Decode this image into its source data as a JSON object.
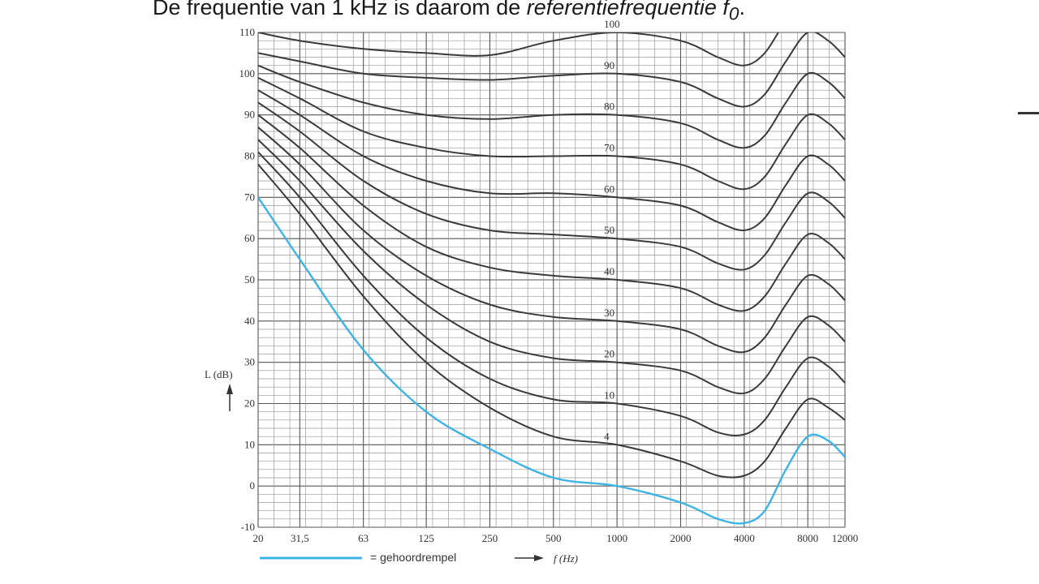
{
  "caption": {
    "prefix": "De frequentie van 1 kHz is daarom de ",
    "italic": "referentiefrequentie f",
    "sub": "0",
    "suffix": "."
  },
  "chart_data": {
    "type": "line",
    "x_scale": "log",
    "x_tick_values": [
      20,
      31.5,
      63,
      125,
      250,
      500,
      1000,
      2000,
      4000,
      8000,
      12000
    ],
    "x_tick_labels": [
      "20",
      "31,5",
      "63",
      "125",
      "250",
      "500",
      "1000",
      "2000",
      "4000",
      "8000",
      "12000"
    ],
    "y_ticks": [
      -10,
      0,
      10,
      20,
      30,
      40,
      50,
      60,
      70,
      80,
      90,
      100,
      110
    ],
    "xlim": [
      20,
      12000
    ],
    "ylim": [
      -10,
      110
    ],
    "grid": true,
    "xlabel": "f (Hz)",
    "ylabel": "L (dB)",
    "colors": {
      "threshold": "#3db4e5",
      "curves": "#3a3a3a",
      "grid": "#555555"
    },
    "series": [
      {
        "name": "gehoordrempel",
        "x": [
          20,
          31.5,
          63,
          125,
          250,
          500,
          1000,
          2000,
          3000,
          4000,
          5000,
          6300,
          8000,
          10000,
          12000
        ],
        "values": [
          70,
          55,
          33,
          18,
          9,
          2,
          0,
          -4,
          -8,
          -9,
          -6,
          4,
          12,
          11,
          7
        ]
      },
      {
        "label": "4",
        "x": [
          20,
          31.5,
          63,
          125,
          250,
          500,
          1000,
          2000,
          3000,
          4000,
          5000,
          6300,
          8000,
          10000,
          12000
        ],
        "values": [
          78,
          66,
          46,
          30,
          19,
          12,
          10,
          6,
          2.5,
          2.5,
          6,
          14,
          21,
          19,
          16
        ]
      },
      {
        "label": "10",
        "x": [
          20,
          31.5,
          63,
          125,
          250,
          500,
          1000,
          2000,
          3000,
          4000,
          5000,
          6300,
          8000,
          10000,
          12000
        ],
        "values": [
          81,
          70,
          51,
          36,
          26,
          21,
          20,
          17,
          13,
          12.5,
          16,
          24,
          31,
          29,
          25
        ]
      },
      {
        "label": "20",
        "x": [
          20,
          31.5,
          63,
          125,
          250,
          500,
          1000,
          2000,
          3000,
          4000,
          5000,
          6300,
          8000,
          10000,
          12000
        ],
        "values": [
          84,
          74,
          57,
          44,
          35,
          31,
          30,
          28,
          24,
          22.5,
          26,
          34,
          41,
          39,
          35
        ]
      },
      {
        "label": "30",
        "x": [
          20,
          31.5,
          63,
          125,
          250,
          500,
          1000,
          2000,
          3000,
          4000,
          5000,
          6300,
          8000,
          10000,
          12000
        ],
        "values": [
          87,
          78,
          62,
          51,
          44,
          41,
          40,
          38,
          34,
          32.5,
          36,
          44,
          51,
          49,
          45
        ]
      },
      {
        "label": "40",
        "x": [
          20,
          31.5,
          63,
          125,
          250,
          500,
          1000,
          2000,
          3000,
          4000,
          5000,
          6300,
          8000,
          10000,
          12000
        ],
        "values": [
          90,
          82,
          68,
          58,
          53,
          51,
          50,
          48,
          44,
          42.5,
          46,
          54,
          61,
          59,
          55
        ]
      },
      {
        "label": "50",
        "x": [
          20,
          31.5,
          63,
          125,
          250,
          500,
          1000,
          2000,
          3000,
          4000,
          5000,
          6300,
          8000,
          10000,
          12000
        ],
        "values": [
          93,
          86,
          74,
          66,
          62,
          61,
          60,
          58,
          54,
          52.5,
          56,
          64,
          71,
          69,
          65
        ]
      },
      {
        "label": "60",
        "x": [
          20,
          31.5,
          63,
          125,
          250,
          500,
          1000,
          2000,
          3000,
          4000,
          5000,
          6300,
          8000,
          10000,
          12000
        ],
        "values": [
          96,
          90,
          80,
          74,
          71,
          71,
          70,
          68,
          64,
          62,
          65,
          73,
          80,
          78,
          74
        ]
      },
      {
        "label": "70",
        "x": [
          20,
          31.5,
          63,
          125,
          250,
          500,
          1000,
          2000,
          3000,
          4000,
          5000,
          6300,
          8000,
          10000,
          12000
        ],
        "values": [
          99,
          94,
          86,
          82,
          80,
          80,
          80,
          78,
          74,
          72,
          75,
          83,
          90,
          88,
          84
        ]
      },
      {
        "label": "80",
        "x": [
          20,
          31.5,
          63,
          125,
          250,
          500,
          1000,
          2000,
          3000,
          4000,
          5000,
          6300,
          8000,
          10000,
          12000
        ],
        "values": [
          102,
          98,
          93,
          90,
          89,
          90,
          90,
          88,
          84,
          82,
          85,
          93,
          100,
          98,
          94
        ]
      },
      {
        "label": "90",
        "x": [
          20,
          31.5,
          63,
          125,
          250,
          500,
          1000,
          2000,
          3000,
          4000,
          5000,
          6300,
          8000,
          10000,
          12000
        ],
        "values": [
          105,
          103,
          100,
          99,
          98.5,
          99.5,
          100,
          98,
          94,
          92,
          95,
          103,
          110,
          108,
          104
        ]
      },
      {
        "label": "100",
        "x": [
          20,
          31.5,
          63,
          125,
          250,
          500,
          1000,
          2000,
          3000,
          4000,
          5000,
          6300,
          8000,
          10000,
          12000
        ],
        "values": [
          110,
          108,
          106,
          105,
          104.5,
          108,
          110,
          108,
          104,
          102,
          105,
          113,
          120,
          118,
          114
        ]
      }
    ],
    "legend": {
      "line_label": "= gehoordrempel",
      "arrow_label": "f (Hz)"
    }
  }
}
